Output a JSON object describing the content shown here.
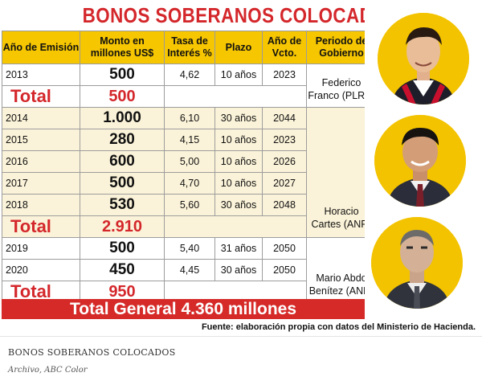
{
  "title": "BONOS SOBERANOS COLOCADOS",
  "headers": {
    "year": "Año de Emisión",
    "amount": "Monto en millones US$",
    "rate": "Tasa de Interés %",
    "term": "Plazo",
    "vcto": "Año de Vcto.",
    "gov": "Periodo de Gobierno"
  },
  "rows": [
    {
      "year": "2013",
      "amount": "500",
      "rate": "4,62",
      "term": "10 años",
      "vcto": "2023"
    },
    {
      "total_label": "Total",
      "total_amount": "500"
    },
    {
      "year": "2014",
      "amount": "1.000",
      "rate": "6,10",
      "term": "30 años",
      "vcto": "2044"
    },
    {
      "year": "2015",
      "amount": "280",
      "rate": "4,15",
      "term": "10 años",
      "vcto": "2023"
    },
    {
      "year": "2016",
      "amount": "600",
      "rate": "5,00",
      "term": "10 años",
      "vcto": "2026"
    },
    {
      "year": "2017",
      "amount": "500",
      "rate": "4,70",
      "term": "10 años",
      "vcto": "2027"
    },
    {
      "year": "2018",
      "amount": "530",
      "rate": "5,60",
      "term": "30 años",
      "vcto": "2048"
    },
    {
      "total_label": "Total",
      "total_amount": "2.910"
    },
    {
      "year": "2019",
      "amount": "500",
      "rate": "5,40",
      "term": "31 años",
      "vcto": "2050"
    },
    {
      "year": "2020",
      "amount": "450",
      "rate": "4,45",
      "term": "30 años",
      "vcto": "2050"
    },
    {
      "total_label": "Total",
      "total_amount": "950"
    }
  ],
  "governments": [
    {
      "name_line1": "Federico",
      "name_line2": "Franco (PLRA)"
    },
    {
      "name_line1": "Horacio",
      "name_line2": "Cartes (ANR)"
    },
    {
      "name_line1": "Mario Abdo",
      "name_line2": "Benítez (ANR)"
    }
  ],
  "grand_total": "Total General  4.360 millones",
  "source": "Fuente: elaboración propia con datos del Ministerio de Hacienda.",
  "caption": "BONOS SOBERANOS COLOCADOS",
  "credit": "Archivo, ABC Color",
  "colors": {
    "title_red": "#d4272b",
    "header_yellow": "#f6c600",
    "total_band": "#d52a28",
    "cream": "#fbf3d9"
  },
  "portraits": [
    "federico-franco-portrait",
    "horacio-cartes-portrait",
    "mario-abdo-portrait"
  ]
}
